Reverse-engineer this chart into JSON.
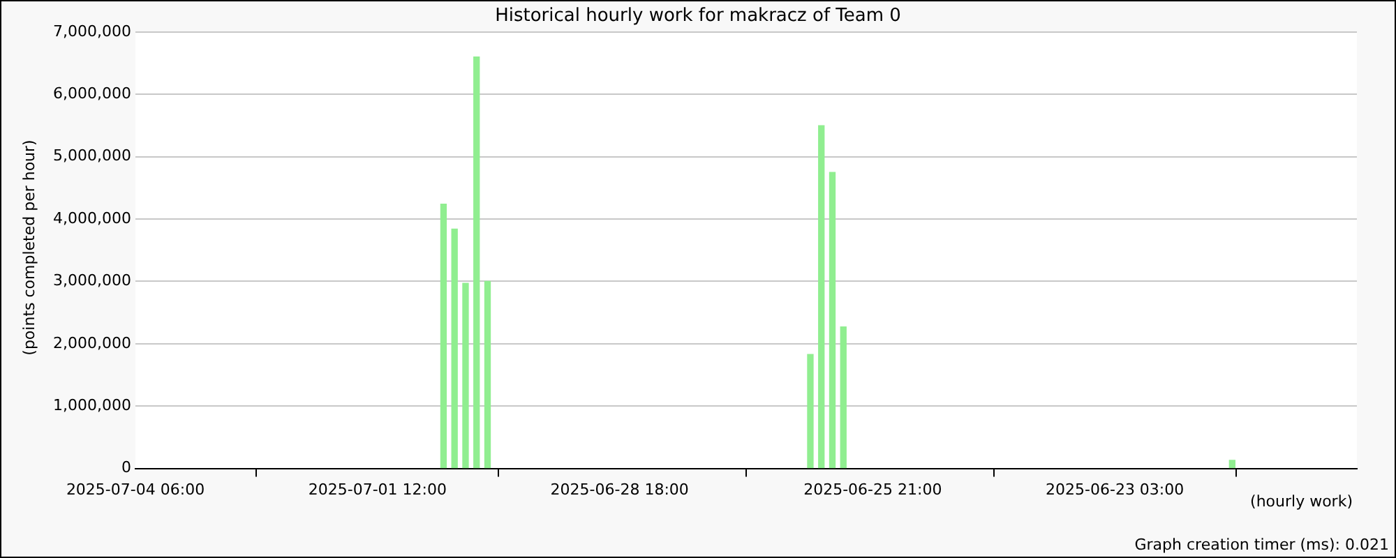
{
  "chart_data": {
    "type": "bar",
    "title": "Historical hourly work for makracz of Team 0",
    "xlabel": "(hourly work)",
    "ylabel": "(points completed per hour)",
    "x": [
      "2025-06-30T18:00",
      "2025-06-30T15:00",
      "2025-06-30T12:00",
      "2025-06-30T09:00",
      "2025-06-30T06:00",
      "2025-06-26T14:00",
      "2025-06-26T11:00",
      "2025-06-26T08:00",
      "2025-06-26T05:00",
      "2025-06-21T19:00"
    ],
    "values": [
      4240000,
      3840000,
      2970000,
      6600000,
      3000000,
      1830000,
      5500000,
      4750000,
      2270000,
      130000
    ],
    "color": "#90ee90",
    "xlim": [
      "2025-07-04T06:00",
      "2025-06-20T09:00"
    ],
    "xticks": [
      {
        "value": "2025-07-04T06:00",
        "label": "2025-07-04 06:00"
      },
      {
        "value": "2025-07-01T12:00",
        "label": "2025-07-01 12:00"
      },
      {
        "value": "2025-06-28T18:00",
        "label": "2025-06-28 18:00"
      },
      {
        "value": "2025-06-25T21:00",
        "label": "2025-06-25 21:00"
      },
      {
        "value": "2025-06-23T03:00",
        "label": "2025-06-23 03:00"
      }
    ],
    "ylim": [
      0,
      7000000
    ],
    "yticks": [
      {
        "value": 0,
        "label": "0"
      },
      {
        "value": 1000000,
        "label": "1,000,000"
      },
      {
        "value": 2000000,
        "label": "2,000,000"
      },
      {
        "value": 3000000,
        "label": "3,000,000"
      },
      {
        "value": 4000000,
        "label": "4,000,000"
      },
      {
        "value": 5000000,
        "label": "5,000,000"
      },
      {
        "value": 6000000,
        "label": "6,000,000"
      },
      {
        "value": 7000000,
        "label": "7,000,000"
      }
    ],
    "grid": "y",
    "legend": false,
    "annotations": [
      "Graph creation timer (ms): 0.021"
    ]
  }
}
